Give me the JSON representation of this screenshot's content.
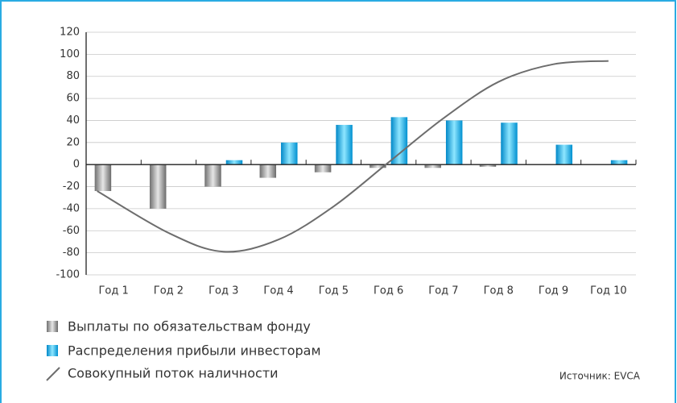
{
  "chart_data": {
    "type": "bar",
    "categories": [
      "Год 1",
      "Год 2",
      "Год 3",
      "Год 4",
      "Год 5",
      "Год 6",
      "Год 7",
      "Год 8",
      "Год 9",
      "Год 10"
    ],
    "series": [
      {
        "name": "Выплаты по обязательствам фонду",
        "color": "#8c8c8c",
        "values": [
          -24,
          -40,
          -20,
          -12,
          -7,
          -3,
          -3,
          -2,
          0,
          0
        ]
      },
      {
        "name": "Распределения прибыли инвесторам",
        "color": "#1ab0e8",
        "values": [
          0,
          0,
          4,
          20,
          36,
          43,
          40,
          38,
          18,
          4
        ]
      },
      {
        "name": "Совокупный поток наличности",
        "color": "#6d6d6d",
        "type": "line",
        "values": [
          -24,
          -62,
          -79,
          -68,
          -38,
          2,
          42,
          75,
          91,
          94
        ]
      }
    ],
    "ylim": [
      -100,
      120
    ],
    "yticks": [
      -100,
      -80,
      -60,
      -40,
      -20,
      0,
      20,
      40,
      60,
      80,
      100,
      120
    ],
    "grid": true,
    "legend": "bottom-left",
    "source": "Источник: EVCA"
  }
}
